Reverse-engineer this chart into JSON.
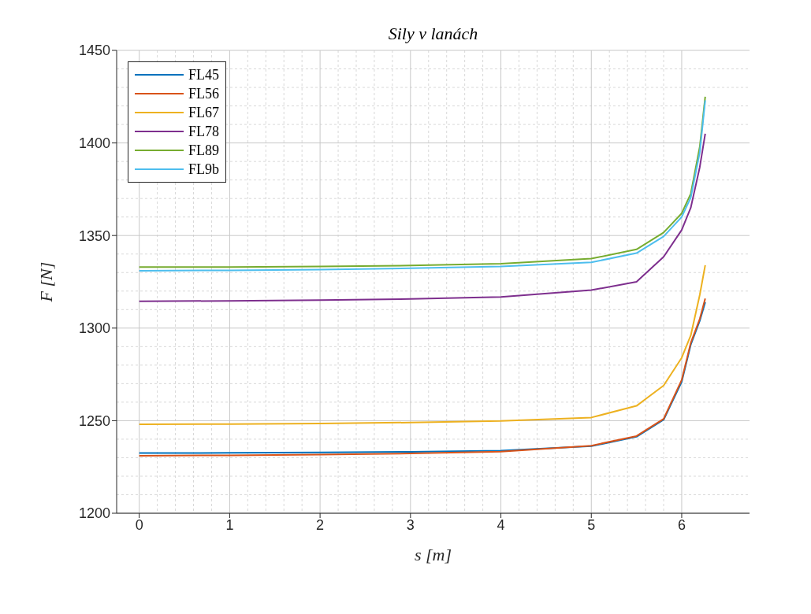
{
  "chart_data": {
    "type": "line",
    "title": "Sily v lanách",
    "xlabel": "s [m]",
    "ylabel": "F [N]",
    "x": [
      0,
      1,
      2,
      3,
      4,
      5,
      5.5,
      5.8,
      6,
      6.1,
      6.2,
      6.26
    ],
    "series": [
      {
        "name": "FL45",
        "color": "#0072bd",
        "values": [
          1232.5,
          1232.6,
          1232.8,
          1233.2,
          1233.8,
          1236.2,
          1241.3,
          1250.5,
          1271,
          1291,
          1304,
          1314
        ]
      },
      {
        "name": "FL56",
        "color": "#d95319",
        "values": [
          1231,
          1231.3,
          1231.7,
          1232.3,
          1233.3,
          1236.5,
          1241.7,
          1251,
          1272,
          1292,
          1305,
          1316
        ]
      },
      {
        "name": "FL67",
        "color": "#edb120",
        "values": [
          1248,
          1248.2,
          1248.5,
          1249,
          1249.8,
          1251.7,
          1258,
          1269,
          1284,
          1296,
          1318,
          1334
        ]
      },
      {
        "name": "FL78",
        "color": "#7e2f8e",
        "values": [
          1314.5,
          1314.7,
          1315.1,
          1315.7,
          1316.8,
          1320.5,
          1325,
          1338.5,
          1353,
          1365,
          1387,
          1405
        ]
      },
      {
        "name": "FL89",
        "color": "#77ac30",
        "values": [
          1333,
          1333,
          1333.3,
          1333.8,
          1334.8,
          1337.5,
          1342.5,
          1351.6,
          1362,
          1372.6,
          1398,
          1425
        ]
      },
      {
        "name": "FL9b",
        "color": "#4dbeee",
        "values": [
          1331,
          1331.2,
          1331.6,
          1332.3,
          1333.3,
          1335.5,
          1340.5,
          1349.5,
          1360,
          1370.5,
          1395,
          1423
        ]
      }
    ],
    "xlim": [
      -0.25,
      6.75
    ],
    "xticks": [
      0,
      1,
      2,
      3,
      4,
      5,
      6
    ],
    "ylim": [
      1200,
      1450
    ],
    "yticks": [
      1200,
      1250,
      1300,
      1350,
      1400,
      1450
    ],
    "grid": true,
    "legend": "top left"
  }
}
